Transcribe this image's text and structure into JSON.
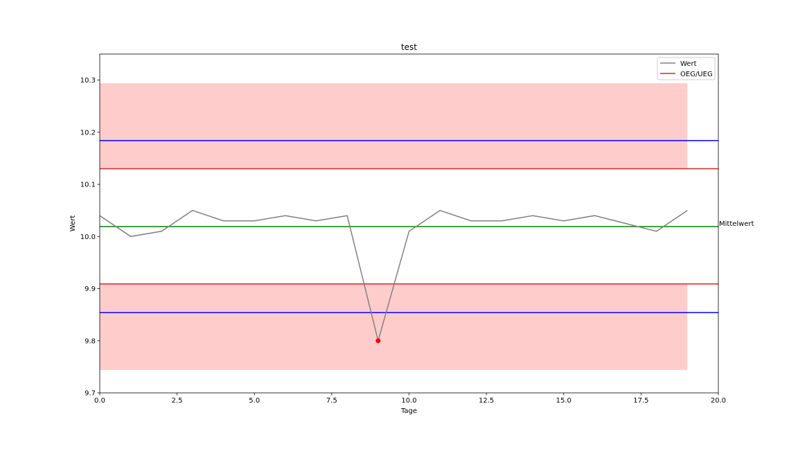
{
  "chart_data": {
    "type": "line",
    "title": "test",
    "xlabel": "Tage",
    "ylabel": "Wert",
    "xlim": [
      0,
      20
    ],
    "ylim": [
      9.7,
      10.35
    ],
    "xticks": [
      "0.0",
      "2.5",
      "5.0",
      "7.5",
      "10.0",
      "12.5",
      "15.0",
      "17.5",
      "20.0"
    ],
    "xtick_values": [
      0,
      2.5,
      5,
      7.5,
      10,
      12.5,
      15,
      17.5,
      20
    ],
    "yticks": [
      "9.7",
      "9.8",
      "9.9",
      "10.0",
      "10.1",
      "10.2",
      "10.3"
    ],
    "ytick_values": [
      9.7,
      9.8,
      9.9,
      10.0,
      10.1,
      10.2,
      10.3
    ],
    "grid": false,
    "legend_position": "top-right",
    "series": [
      {
        "name": "Wert",
        "color": "#808080",
        "x": [
          0,
          1,
          2,
          3,
          4,
          5,
          6,
          7,
          8,
          9,
          10,
          11,
          12,
          13,
          14,
          15,
          16,
          17,
          18,
          19
        ],
        "values": [
          10.04,
          10.0,
          10.01,
          10.05,
          10.03,
          10.03,
          10.04,
          10.03,
          10.04,
          9.8,
          10.01,
          10.05,
          10.03,
          10.03,
          10.04,
          10.03,
          10.04,
          10.025,
          10.01,
          10.05
        ]
      }
    ],
    "outliers": [
      {
        "x": 9,
        "y": 9.8,
        "color": "#ff0000"
      }
    ],
    "limit_lines": {
      "legend_name": "OEG/UEG",
      "color": "#d62728",
      "upper": 10.13,
      "lower": 9.909
    },
    "blue_lines": {
      "color": "#0000ff",
      "upper": 10.184,
      "lower": 9.854
    },
    "mean_line": {
      "label": "Mittelwert",
      "color": "#008000",
      "value": 10.019
    },
    "shaded_bands": {
      "color": "#ff0000",
      "opacity": 0.2,
      "x_range": [
        0,
        19
      ],
      "upper_band": [
        10.13,
        10.294
      ],
      "lower_band": [
        9.744,
        9.909
      ]
    }
  }
}
